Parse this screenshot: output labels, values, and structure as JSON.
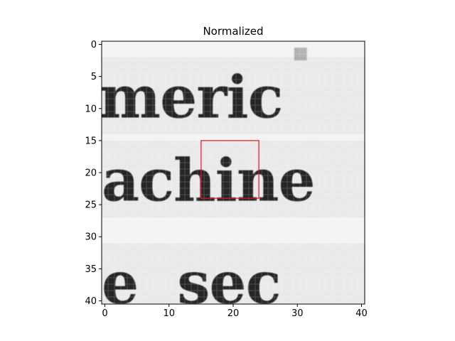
{
  "chart_data": {
    "type": "heatmap",
    "title": "Normalized",
    "xlabel": "",
    "ylabel": "",
    "xlim": [
      -0.5,
      40.5
    ],
    "ylim": [
      40.5,
      -0.5
    ],
    "x_ticks": [
      0,
      10,
      20,
      30,
      40
    ],
    "y_ticks": [
      0,
      5,
      10,
      15,
      20,
      25,
      30,
      35,
      40
    ],
    "colormap": "grayscale",
    "image_text_rows": [
      {
        "text": "meric",
        "center_row": 8
      },
      {
        "text": "achine",
        "center_row": 21
      },
      {
        "text": "e  sec",
        "center_row": 37
      }
    ],
    "highlight_box": {
      "x0": 15,
      "x1": 24,
      "y0": 15,
      "y1": 24,
      "color": "#e8141c"
    },
    "grid": false
  }
}
